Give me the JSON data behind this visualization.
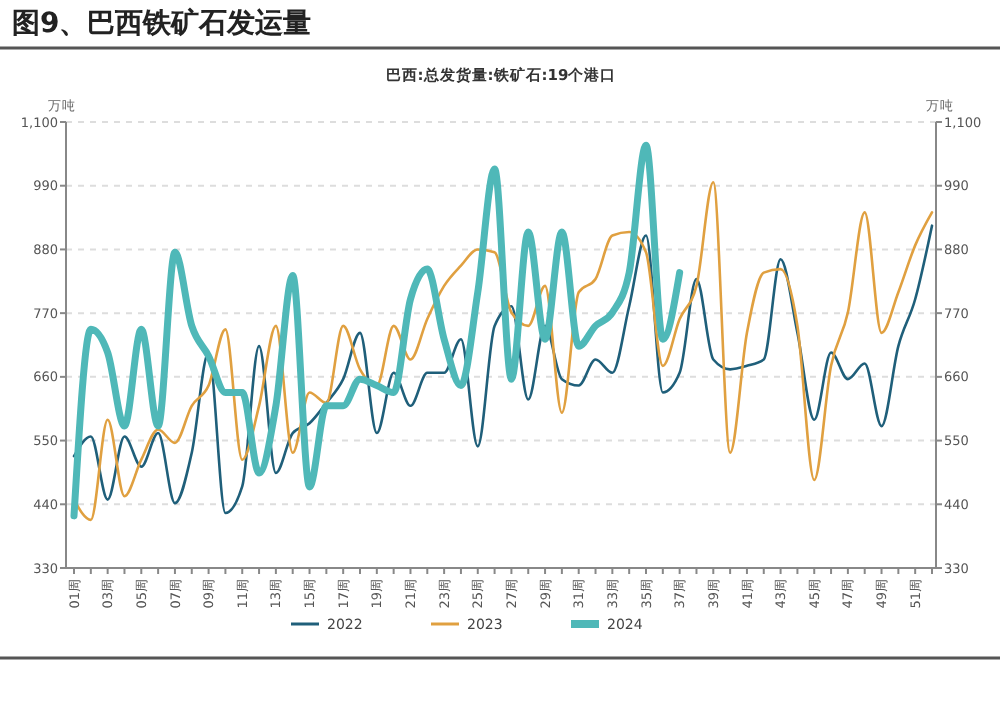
{
  "chart_data": {
    "type": "line",
    "title": "图9、巴西铁矿石发运量",
    "subtitle": "巴西:总发货量:铁矿石:19个港口",
    "ylabel": "万吨",
    "y2label": "万吨",
    "categories": [
      "01周",
      null,
      "03周",
      null,
      "05周",
      null,
      "07周",
      null,
      "09周",
      null,
      "11周",
      null,
      "13周",
      null,
      "15周",
      null,
      "17周",
      null,
      "19周",
      null,
      "21周",
      null,
      "23周",
      null,
      "25周",
      null,
      "27周",
      null,
      "29周",
      null,
      "31周",
      null,
      "33周",
      null,
      "35周",
      null,
      "37周",
      null,
      "39周",
      null,
      "41周",
      null,
      "43周",
      null,
      "45周",
      null,
      "47周",
      null,
      "49周",
      null,
      "51周",
      null
    ],
    "series": [
      {
        "name": "2022",
        "color": "#1f5f7a",
        "values": [
          523,
          557,
          448,
          557,
          505,
          563,
          442,
          529,
          702,
          425,
          471,
          713,
          494,
          563,
          580,
          615,
          656,
          736,
          563,
          667,
          610,
          667,
          667,
          725,
          540,
          748,
          782,
          621,
          748,
          656,
          645,
          690,
          667,
          782,
          904,
          633,
          667,
          829,
          690,
          673,
          679,
          690,
          863,
          736,
          586,
          702,
          656,
          683,
          575,
          713,
          794,
          921
        ]
      },
      {
        "name": "2023",
        "color": "#e0a040",
        "values": [
          448,
          413,
          586,
          454,
          517,
          569,
          546,
          610,
          645,
          742,
          517,
          610,
          748,
          529,
          633,
          615,
          748,
          673,
          645,
          748,
          690,
          760,
          817,
          852,
          880,
          875,
          771,
          748,
          817,
          598,
          806,
          829,
          904,
          910,
          875,
          679,
          760,
          817,
          996,
          529,
          736,
          840,
          846,
          748,
          482,
          679,
          771,
          944,
          736,
          806,
          887,
          944
        ]
      },
      {
        "name": "2024",
        "color": "#4fb8b8",
        "values": [
          420,
          742,
          702,
          575,
          742,
          575,
          875,
          748,
          696,
          633,
          633,
          494,
          610,
          835,
          470,
          610,
          610,
          656,
          645,
          633,
          794,
          846,
          725,
          645,
          806,
          1019,
          656,
          910,
          725,
          910,
          713,
          748,
          771,
          840,
          1060,
          725,
          840,
          null,
          null,
          null,
          null,
          null,
          null,
          null,
          null,
          null,
          null,
          null,
          null,
          null,
          null,
          null
        ]
      }
    ],
    "ylim": [
      330,
      1100
    ],
    "yticks": [
      330,
      440,
      550,
      660,
      770,
      880,
      990,
      {
        "value": 1100,
        "label": "1,100"
      }
    ],
    "y2lim": [
      330,
      1100
    ],
    "y2ticks": [
      330,
      440,
      550,
      660,
      770,
      880,
      990,
      {
        "value": 1100,
        "label": "1,100"
      }
    ],
    "grid": "y",
    "legend": "bottom",
    "line_style": "solid",
    "marker": "none"
  }
}
